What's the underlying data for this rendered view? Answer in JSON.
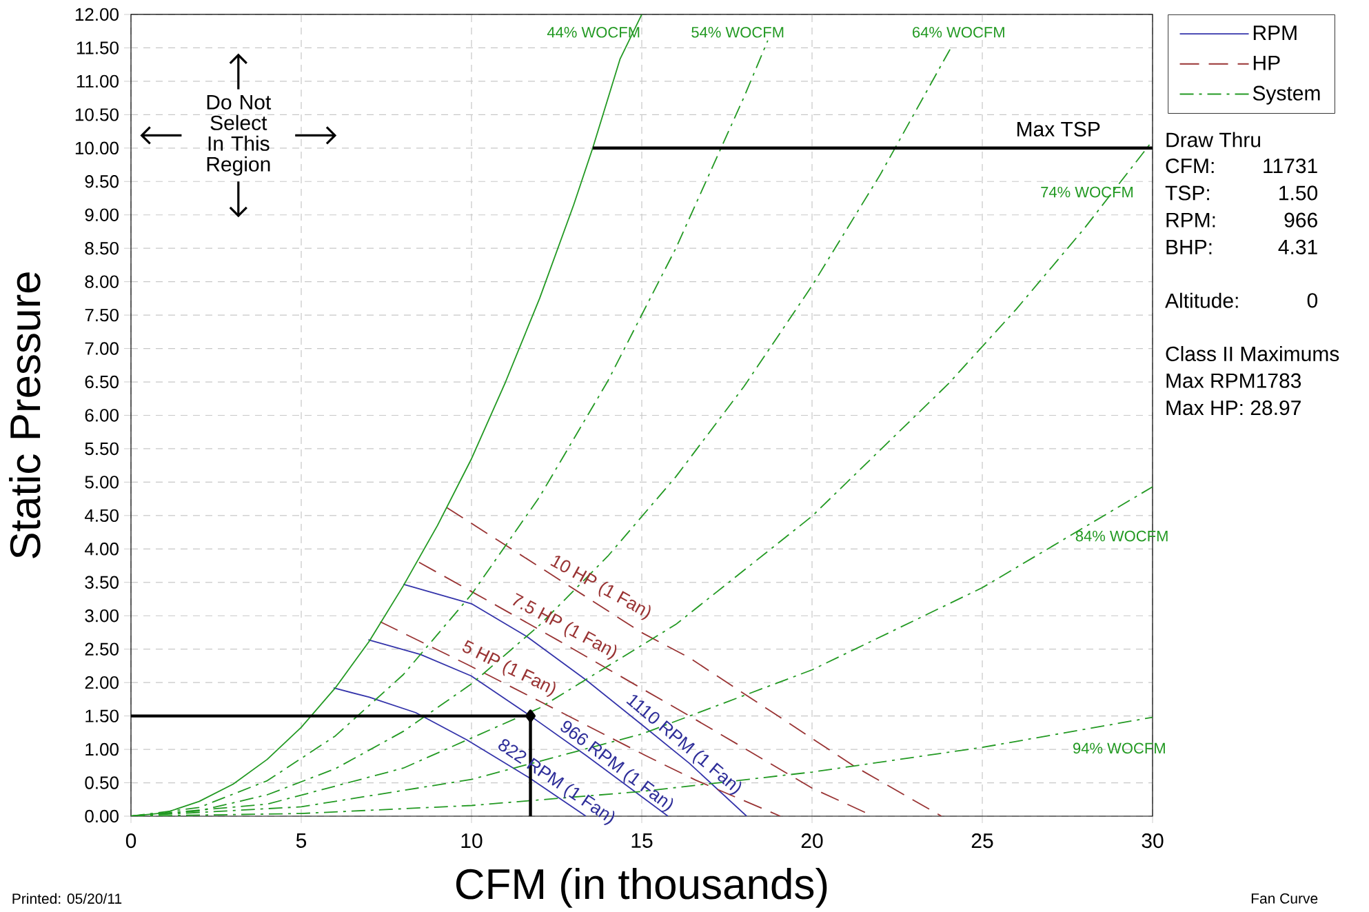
{
  "chart_data": {
    "type": "line",
    "xlabel": "CFM (in thousands)",
    "ylabel": "Static Pressure",
    "xlim": [
      0,
      30
    ],
    "ylim": [
      0,
      12
    ],
    "xticks": [
      0,
      5,
      10,
      15,
      20,
      25,
      30
    ],
    "yticks": [
      {
        "value": 0,
        "label": "0.00"
      },
      {
        "value": 0.5,
        "label": "0.50"
      },
      {
        "value": 1,
        "label": "1.00"
      },
      {
        "value": 1.5,
        "label": "1.50"
      },
      {
        "value": 2,
        "label": "2.00"
      },
      {
        "value": 2.5,
        "label": "2.50"
      },
      {
        "value": 3,
        "label": "3.00"
      },
      {
        "value": 3.5,
        "label": "3.50"
      },
      {
        "value": 4,
        "label": "4.00"
      },
      {
        "value": 4.5,
        "label": "4.50"
      },
      {
        "value": 5,
        "label": "5.00"
      },
      {
        "value": 5.5,
        "label": "5.50"
      },
      {
        "value": 6,
        "label": "6.00"
      },
      {
        "value": 6.5,
        "label": "6.50"
      },
      {
        "value": 7,
        "label": "7.00"
      },
      {
        "value": 7.5,
        "label": "7.50"
      },
      {
        "value": 8,
        "label": "8.00"
      },
      {
        "value": 8.5,
        "label": "8.50"
      },
      {
        "value": 9,
        "label": "9.00"
      },
      {
        "value": 9.5,
        "label": "9.50"
      },
      {
        "value": 10,
        "label": "10.00"
      },
      {
        "value": 10.5,
        "label": "10.50"
      },
      {
        "value": 11,
        "label": "11.00"
      },
      {
        "value": 11.5,
        "label": "11.50"
      },
      {
        "value": 12,
        "label": "12.00"
      }
    ],
    "grid": true,
    "legend": "top right",
    "series": [
      {
        "name": "RPM",
        "color": "#3333aa",
        "line_style": "solid",
        "x": [
          5.95,
          7,
          8.36,
          9.87,
          11.68,
          13.36
        ],
        "values": [
          1.92,
          1.78,
          1.55,
          1.14,
          0.58,
          0
        ]
      },
      {
        "color": "#3333aa",
        "line_style": "solid",
        "x": [
          6.97,
          8.5,
          9.99,
          11.73,
          13.36,
          15.77
        ],
        "values": [
          2.64,
          2.42,
          2.1,
          1.5,
          0.91,
          0
        ]
      },
      {
        "color": "#3333aa",
        "line_style": "solid",
        "x": [
          8.0,
          10,
          11.62,
          13.36,
          15,
          16.4,
          18.08
        ],
        "values": [
          3.47,
          3.18,
          2.69,
          2.04,
          1.37,
          0.79,
          0
        ]
      },
      {
        "name": "HP",
        "color": "#993333",
        "line_style": "dashed",
        "x": [
          7.32,
          9.88,
          12,
          15.1,
          16.58,
          19.07
        ],
        "values": [
          2.91,
          2.27,
          1.72,
          0.91,
          0.54,
          0
        ]
      },
      {
        "color": "#993333",
        "line_style": "dashed",
        "x": [
          8.46,
          10.5,
          12.55,
          16.4,
          20.0,
          21.8
        ],
        "values": [
          3.8,
          3.22,
          2.63,
          1.5,
          0.42,
          0
        ]
      },
      {
        "color": "#993333",
        "line_style": "dashed",
        "x": [
          9.27,
          12,
          14.99,
          16.4,
          19,
          21.2,
          23.8
        ],
        "values": [
          4.62,
          3.73,
          2.75,
          2.37,
          1.5,
          0.76,
          0
        ]
      },
      {
        "name": "System",
        "color": "#229922",
        "line_style": "dashdot",
        "x": [
          0,
          2,
          4,
          6,
          8,
          10,
          12,
          14,
          16,
          18,
          18.7
        ],
        "values": [
          0,
          0.13,
          0.53,
          1.2,
          2.12,
          3.32,
          4.78,
          6.51,
          8.5,
          10.76,
          11.61
        ]
      },
      {
        "color": "#229922",
        "line_style": "solid",
        "x": [
          0,
          1,
          2,
          3,
          4,
          5,
          6,
          7,
          8,
          9,
          10,
          11,
          12,
          13,
          13.56,
          14.36,
          15.0
        ],
        "values": [
          0,
          0.05,
          0.22,
          0.48,
          0.85,
          1.33,
          1.92,
          2.62,
          3.45,
          4.35,
          5.35,
          6.5,
          7.75,
          9.15,
          10.0,
          11.33,
          12.0
        ]
      },
      {
        "color": "#229922",
        "line_style": "dashdot",
        "x": [
          0,
          2,
          4,
          6,
          8,
          10,
          12,
          14,
          16,
          18,
          20,
          22,
          24,
          24.1
        ],
        "values": [
          0,
          0.08,
          0.32,
          0.71,
          1.27,
          1.98,
          2.86,
          3.89,
          5.08,
          6.43,
          7.94,
          9.6,
          11.43,
          11.52
        ]
      },
      {
        "color": "#229922",
        "line_style": "dashdot",
        "x": [
          0,
          4,
          8,
          12,
          16,
          20,
          24,
          26,
          28,
          30
        ],
        "values": [
          0,
          0.18,
          0.72,
          1.62,
          2.87,
          4.49,
          6.47,
          7.59,
          8.8,
          10.11
        ]
      },
      {
        "color": "#229922",
        "line_style": "dashdot",
        "x": [
          0,
          5,
          10,
          15,
          20,
          25,
          30
        ],
        "values": [
          0,
          0.14,
          0.55,
          1.23,
          2.19,
          3.42,
          4.93
        ]
      },
      {
        "color": "#229922",
        "line_style": "dashdot",
        "x": [
          0,
          5,
          10,
          15,
          20,
          25,
          30
        ],
        "values": [
          0,
          0.04,
          0.16,
          0.37,
          0.66,
          1.03,
          1.48
        ]
      },
      {
        "color": "#000000",
        "line_style": "solid",
        "x": [
          13.56,
          30
        ],
        "values": [
          10,
          10
        ]
      },
      {
        "color": "#000000",
        "line_style": "solid",
        "x": [
          0,
          11.731,
          11.731
        ],
        "values": [
          1.5,
          1.5,
          0
        ]
      },
      {
        "type": "scatter",
        "color": "#000000",
        "marker": "diamond",
        "x": [
          11.731
        ],
        "values": [
          1.5
        ]
      }
    ],
    "annotations": [
      "Do Not Select In This Region",
      "822 RPM (1 Fan)",
      "966 RPM (1 Fan)",
      "1110 RPM (1 Fan)",
      "5 HP (1 Fan)",
      "7.5 HP (1 Fan)",
      "10 HP (1 Fan)",
      "44% WOCFM",
      "54% WOCFM",
      "64% WOCFM",
      "74% WOCFM",
      "84% WOCFM",
      "94% WOCFM",
      "Max TSP",
      "Draw Thru",
      "CFM:",
      "11731",
      "TSP:",
      "1.50",
      "RPM:",
      "966",
      "BHP:",
      "4.31",
      "Altitude:",
      "0",
      "Class II Maximums",
      "Max RPM1783",
      "Max HP: 28.97",
      "Printed: 05/20/11",
      "Fan Curve"
    ]
  }
}
